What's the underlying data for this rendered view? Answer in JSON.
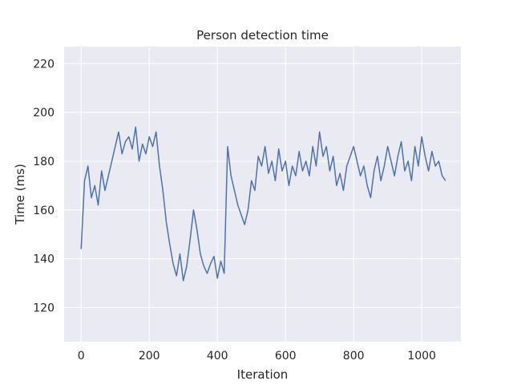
{
  "chart_data": {
    "type": "line",
    "title": "Person detection time",
    "xlabel": "Iteration",
    "ylabel": "Time (ms)",
    "xlim": [
      -50,
      1115
    ],
    "ylim": [
      106,
      227
    ],
    "xticks": [
      0,
      200,
      400,
      600,
      800,
      1000
    ],
    "yticks": [
      120,
      140,
      160,
      180,
      200,
      220
    ],
    "grid": true,
    "style": "seaborn-darkgrid",
    "colors": {
      "background": "#eaeaf2",
      "grid": "#ffffff",
      "line": "#4c72b0"
    },
    "series": [
      {
        "name": "",
        "x": [
          0,
          10,
          20,
          30,
          40,
          50,
          60,
          70,
          80,
          90,
          100,
          110,
          120,
          130,
          140,
          150,
          160,
          170,
          180,
          190,
          200,
          210,
          220,
          230,
          240,
          250,
          260,
          270,
          280,
          290,
          300,
          310,
          320,
          330,
          340,
          350,
          360,
          370,
          380,
          390,
          400,
          410,
          420,
          430,
          440,
          450,
          460,
          470,
          480,
          490,
          500,
          510,
          520,
          530,
          540,
          550,
          560,
          570,
          580,
          590,
          600,
          610,
          620,
          630,
          640,
          650,
          660,
          670,
          680,
          690,
          700,
          710,
          720,
          730,
          740,
          750,
          760,
          770,
          780,
          790,
          800,
          810,
          820,
          830,
          840,
          850,
          860,
          870,
          880,
          890,
          900,
          910,
          920,
          930,
          940,
          950,
          960,
          970,
          980,
          990,
          1000,
          1010,
          1020,
          1030,
          1040,
          1050,
          1060,
          1070
        ],
        "values": [
          144,
          172,
          178,
          165,
          170,
          162,
          176,
          168,
          174,
          180,
          186,
          192,
          183,
          188,
          190,
          185,
          194,
          180,
          187,
          183,
          190,
          186,
          192,
          178,
          168,
          155,
          146,
          138,
          133,
          142,
          131,
          137,
          148,
          160,
          152,
          142,
          137,
          134,
          138,
          141,
          132,
          139,
          134,
          186,
          174,
          168,
          162,
          158,
          154,
          160,
          172,
          168,
          182,
          178,
          186,
          175,
          180,
          172,
          185,
          176,
          180,
          170,
          178,
          174,
          184,
          176,
          180,
          174,
          186,
          178,
          192,
          182,
          186,
          176,
          182,
          170,
          175,
          168,
          178,
          182,
          186,
          180,
          174,
          178,
          170,
          165,
          176,
          182,
          172,
          178,
          186,
          180,
          174,
          182,
          188,
          176,
          180,
          172,
          186,
          178,
          190,
          182,
          176,
          184,
          178,
          180,
          174,
          172
        ]
      }
    ]
  }
}
